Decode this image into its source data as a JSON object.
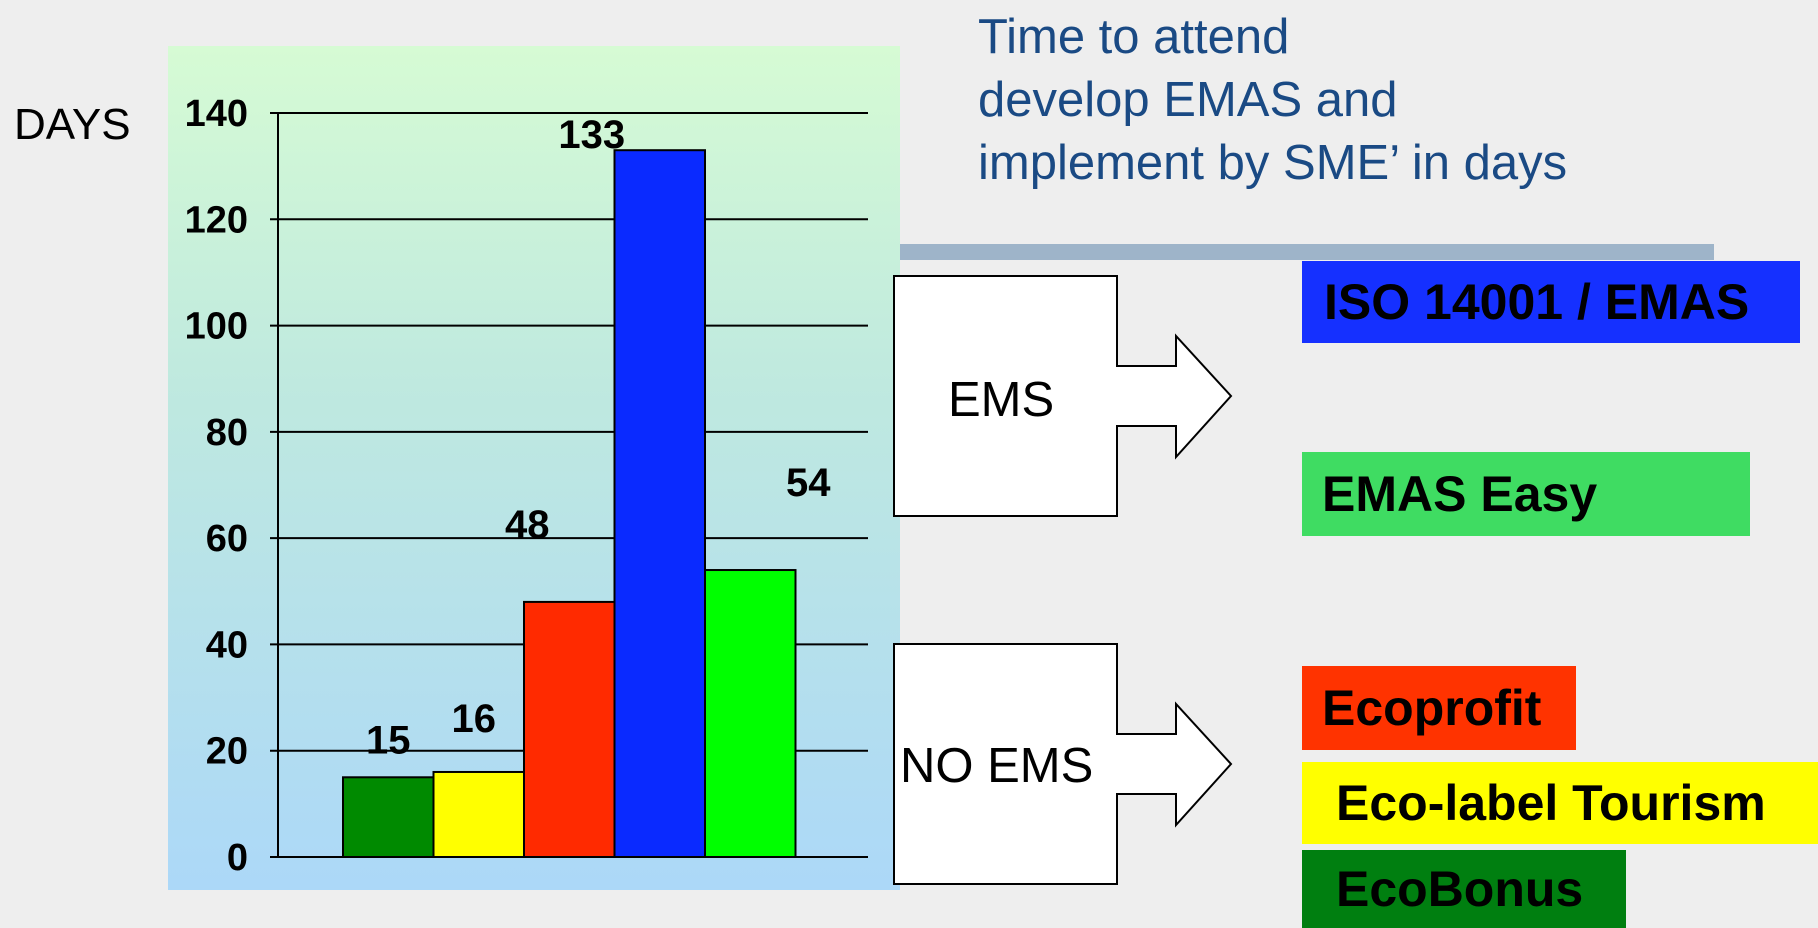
{
  "chart_data": {
    "type": "bar",
    "ylabel": "DAYS",
    "title": "Time to attend\ndevelop EMAS and\nimplement by SME’ in days",
    "ylim": [
      0,
      140
    ],
    "yticks": [
      0,
      20,
      40,
      60,
      80,
      100,
      120,
      140
    ],
    "grid": true,
    "categories": [
      "EcoBonus",
      "Eco-label Tourism",
      "Ecoprofit",
      "ISO 14001 / EMAS",
      "EMAS Easy"
    ],
    "values": [
      15,
      16,
      48,
      133,
      54
    ],
    "colors": [
      "#008a00",
      "#ffff00",
      "#ff2a00",
      "#0a2aff",
      "#00ff00"
    ]
  },
  "groups": [
    {
      "label": "EMS"
    },
    {
      "label": "NO EMS"
    }
  ],
  "legend": [
    {
      "label": "ISO 14001 / EMAS",
      "color": "#1530ff"
    },
    {
      "label": "EMAS Easy",
      "color": "#3fdc62"
    },
    {
      "label": "Ecoprofit",
      "color": "#ff3300"
    },
    {
      "label": "Eco-label Tourism",
      "color": "#ffff00"
    },
    {
      "label": "EcoBonus",
      "color": "#007f10"
    }
  ]
}
